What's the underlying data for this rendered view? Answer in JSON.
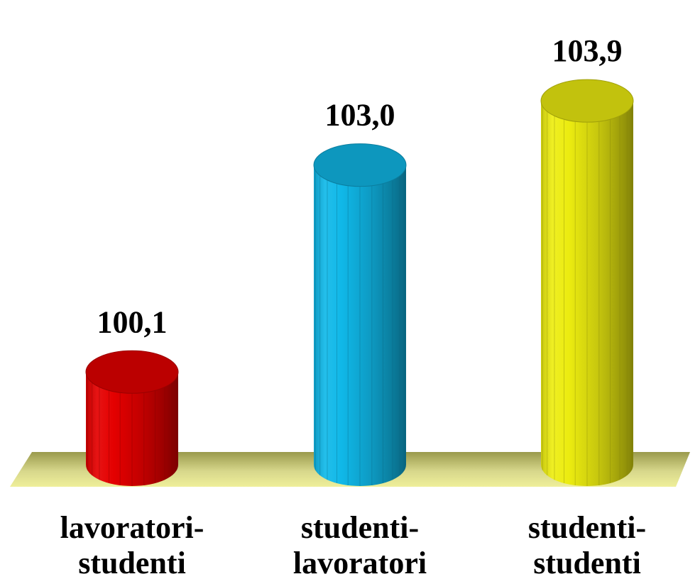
{
  "chart_data": {
    "type": "bar",
    "style": "3d-cylinder",
    "title": "",
    "xlabel": "",
    "ylabel": "",
    "categories": [
      [
        "lavoratori-",
        "studenti"
      ],
      [
        "studenti-",
        "lavoratori"
      ],
      [
        "studenti-",
        "studenti"
      ]
    ],
    "values": [
      100.1,
      103.0,
      103.9
    ],
    "value_labels": [
      "100,1",
      "103,0",
      "103,9"
    ],
    "ylim": [
      98.8,
      104.2
    ],
    "grid": false,
    "legend": "none",
    "colors": {
      "bars": [
        "#e40000",
        "#10b8e8",
        "#ecec10"
      ],
      "floor": "#efef9a",
      "floor_shadow": "#9a9a4c"
    }
  }
}
